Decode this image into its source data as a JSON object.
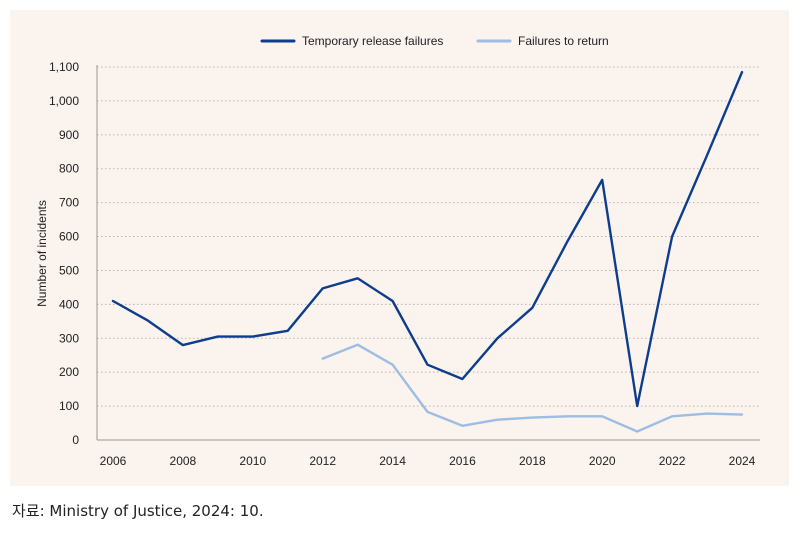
{
  "chart_data": {
    "type": "line",
    "title": "",
    "xlabel": "",
    "ylabel": "Number of incidents",
    "ylim": [
      0,
      1100
    ],
    "yticks": [
      0,
      100,
      200,
      300,
      400,
      500,
      600,
      700,
      800,
      900,
      1000,
      1100
    ],
    "ytick_labels": [
      "0",
      "100",
      "200",
      "300",
      "400",
      "500",
      "600",
      "700",
      "800",
      "900",
      "1,000",
      "1,100"
    ],
    "xlim": [
      2006,
      2024
    ],
    "xticks": [
      "2006",
      "2008",
      "2010",
      "2012",
      "2014",
      "2016",
      "2018",
      "2020",
      "2022",
      "2024"
    ],
    "grid": "horizontal dotted",
    "legend_position": "top-center",
    "series": [
      {
        "name": "Temporary release failures",
        "color": "#0d3d8c",
        "x": [
          2006,
          2007,
          2008,
          2009,
          2010,
          2011,
          2012,
          2013,
          2014,
          2015,
          2016,
          2017,
          2018,
          2019,
          2020,
          2021,
          2022,
          2023,
          2024
        ],
        "values": [
          410,
          352,
          280,
          305,
          305,
          322,
          447,
          477,
          410,
          222,
          180,
          300,
          390,
          585,
          767,
          100,
          600,
          840,
          1085
        ]
      },
      {
        "name": "Failures to return",
        "color": "#9dbde2",
        "x": [
          2012,
          2013,
          2014,
          2015,
          2016,
          2017,
          2018,
          2019,
          2020,
          2021,
          2022,
          2023,
          2024
        ],
        "values": [
          240,
          281,
          222,
          83,
          42,
          60,
          66,
          70,
          70,
          25,
          70,
          78,
          75
        ]
      }
    ]
  },
  "source_note": "자료: Ministry of Justice, 2024: 10."
}
